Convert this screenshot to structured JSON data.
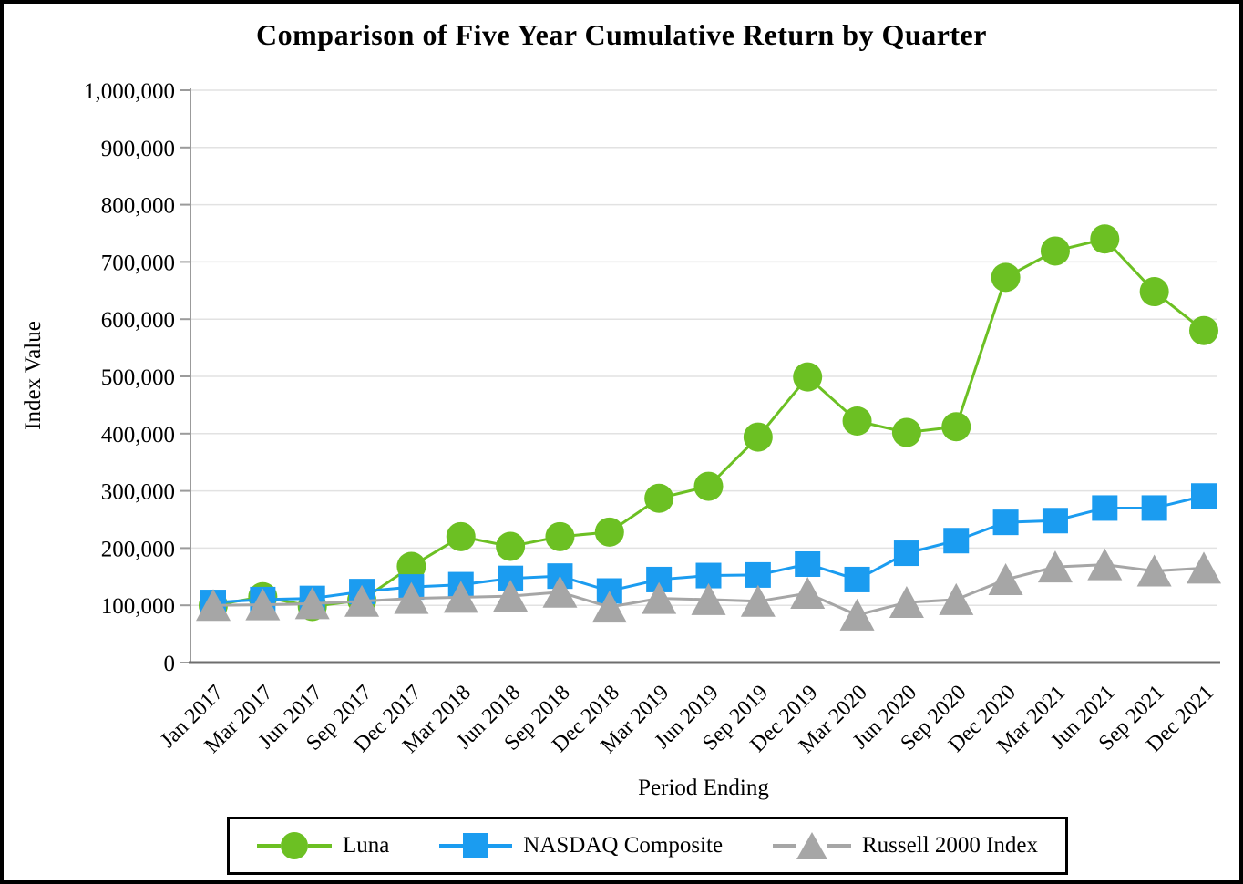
{
  "chart_data": {
    "type": "line",
    "title": "Comparison of Five Year Cumulative Return by Quarter",
    "xlabel": "Period Ending",
    "ylabel": "Index Value",
    "ylim": [
      0,
      1000000
    ],
    "y_tick_step": 100000,
    "y_tick_labels": [
      "0",
      "100,000",
      "200,000",
      "300,000",
      "400,000",
      "500,000",
      "600,000",
      "700,000",
      "800,000",
      "900,000",
      "1,000,000"
    ],
    "grid": "horizontal",
    "legend_position": "bottom-boxed",
    "categories": [
      "Jan 2017",
      "Mar 2017",
      "Jun 2017",
      "Sep 2017",
      "Dec 2017",
      "Mar 2018",
      "Jun 2018",
      "Sep 2018",
      "Dec 2018",
      "Mar 2019",
      "Jun 2019",
      "Sep 2019",
      "Dec 2019",
      "Mar 2020",
      "Jun 2020",
      "Sep 2020",
      "Dec 2020",
      "Mar 2021",
      "Jun 2021",
      "Sep 2021",
      "Dec 2021"
    ],
    "series": [
      {
        "name": "Luna",
        "marker": "circle",
        "color": "#6CC023",
        "values": [
          100000,
          115000,
          98000,
          109000,
          168000,
          220000,
          203000,
          220000,
          228000,
          287000,
          308000,
          394000,
          499000,
          422000,
          402000,
          412000,
          673000,
          719000,
          740000,
          648000,
          580000
        ]
      },
      {
        "name": "NASDAQ Composite",
        "marker": "square",
        "color": "#1B9CF0",
        "values": [
          105000,
          110000,
          112000,
          124000,
          132000,
          136000,
          147000,
          151000,
          125000,
          145000,
          152000,
          153000,
          172000,
          145000,
          191000,
          213000,
          245000,
          248000,
          270000,
          270000,
          291000
        ]
      },
      {
        "name": "Russell 2000 Index",
        "marker": "triangle",
        "color": "#A6A6A6",
        "values": [
          100000,
          101000,
          103000,
          107000,
          112000,
          114000,
          116000,
          123000,
          97000,
          112000,
          110000,
          107000,
          121000,
          83000,
          105000,
          110000,
          145000,
          167000,
          171000,
          160000,
          165000
        ]
      }
    ],
    "axis_color": "#9B9B9B",
    "x_axis_color": "#6E6E6E",
    "gridline_color": "#E2E2E2"
  }
}
